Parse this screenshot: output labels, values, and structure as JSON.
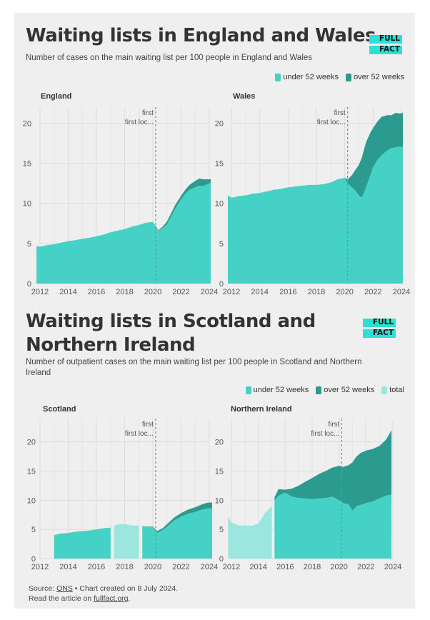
{
  "top": {
    "title": "Waiting lists in England and Wales",
    "subtitle": "Number of cases on the main waiting list per 100 people in England and Wales",
    "logo": [
      "FULL",
      "FACT"
    ],
    "legend": [
      {
        "label": "under 52 weeks",
        "color": "#46d1c6"
      },
      {
        "label": "over 52 weeks",
        "color": "#2b9b8f"
      }
    ]
  },
  "bottom": {
    "title_line1": "Waiting lists in Scotland and",
    "title_line2": "Northern Ireland",
    "subtitle_line1": "Number of outpatient cases on the main waiting list per 100 people in Scotland and Northern",
    "subtitle_line2": "Ireland",
    "logo": [
      "FULL",
      "FACT"
    ],
    "legend": [
      {
        "label": "under 52 weeks",
        "color": "#46d1c6"
      },
      {
        "label": "over 52 weeks",
        "color": "#2b9b8f"
      },
      {
        "label": "total",
        "color": "#9ce6e0"
      }
    ]
  },
  "footer": {
    "source_prefix": "Source: ",
    "source_link": "ONS",
    "source_suffix": " • Chart created on 8 July 2024.",
    "read_prefix": "Read the article on ",
    "read_link": "fullfact.org",
    "read_suffix": "."
  },
  "colors": {
    "under": "#46d1c6",
    "over": "#2b9b8f",
    "total": "#9ce6e0",
    "grid": "#dcdcdc",
    "divider": "#888888"
  },
  "chart_data": [
    {
      "type": "area",
      "title": "England",
      "ylim": [
        0,
        22
      ],
      "yticks": [
        0,
        5,
        10,
        15,
        20
      ],
      "xlim": [
        2012,
        2024
      ],
      "xticks": [
        2012,
        2014,
        2016,
        2018,
        2020,
        2022,
        2024
      ],
      "annotation": {
        "x": 2020.2,
        "lines": [
          "first",
          "first loc..."
        ]
      },
      "x": [
        2011.75,
        2012,
        2012.5,
        2013,
        2013.5,
        2014,
        2014.5,
        2015,
        2015.5,
        2016,
        2016.5,
        2017,
        2017.5,
        2018,
        2018.5,
        2019,
        2019.5,
        2020,
        2020.2,
        2020.4,
        2020.7,
        2021,
        2021.3,
        2021.6,
        2022,
        2022.3,
        2022.6,
        2023,
        2023.3,
        2023.6,
        2023.9,
        2024.1
      ],
      "series": [
        {
          "name": "under 52 weeks",
          "values": [
            4.7,
            4.6,
            4.8,
            4.9,
            5.1,
            5.3,
            5.4,
            5.6,
            5.7,
            5.9,
            6.1,
            6.4,
            6.6,
            6.8,
            7.1,
            7.3,
            7.6,
            7.7,
            7.2,
            6.6,
            6.9,
            7.4,
            8.4,
            9.4,
            10.5,
            11.2,
            11.7,
            12.0,
            12.2,
            12.2,
            12.4,
            12.6
          ]
        },
        {
          "name": "over 52 weeks",
          "values": [
            0,
            0,
            0,
            0,
            0,
            0,
            0,
            0,
            0,
            0,
            0,
            0,
            0,
            0,
            0,
            0,
            0,
            0,
            0,
            0.05,
            0.2,
            0.35,
            0.4,
            0.45,
            0.45,
            0.5,
            0.6,
            0.8,
            0.9,
            0.8,
            0.6,
            0.4
          ]
        }
      ]
    },
    {
      "type": "area",
      "title": "Wales",
      "ylim": [
        0,
        22
      ],
      "yticks": [
        0,
        5,
        10,
        15,
        20
      ],
      "xlim": [
        2012,
        2024
      ],
      "xticks": [
        2012,
        2014,
        2016,
        2018,
        2020,
        2022,
        2024
      ],
      "annotation": {
        "x": 2020.2,
        "lines": [
          "first",
          "first loc..."
        ]
      },
      "x": [
        2011.75,
        2012,
        2012.5,
        2013,
        2013.5,
        2014,
        2014.5,
        2015,
        2015.5,
        2016,
        2016.5,
        2017,
        2017.5,
        2018,
        2018.5,
        2019,
        2019.5,
        2020,
        2020.2,
        2020.5,
        2020.8,
        2021,
        2021.2,
        2021.5,
        2021.8,
        2022,
        2022.3,
        2022.6,
        2023,
        2023.3,
        2023.6,
        2023.9,
        2024.1
      ],
      "series": [
        {
          "name": "under 52 weeks",
          "values": [
            11.0,
            10.7,
            10.9,
            11.0,
            11.2,
            11.3,
            11.5,
            11.7,
            11.8,
            12.0,
            12.1,
            12.2,
            12.3,
            12.3,
            12.4,
            12.6,
            13.0,
            13.2,
            12.5,
            12.0,
            11.5,
            11.0,
            10.7,
            12.0,
            13.5,
            14.5,
            15.4,
            16.0,
            16.6,
            16.9,
            17.0,
            17.1,
            17.0
          ]
        },
        {
          "name": "over 52 weeks",
          "values": [
            0,
            0,
            0,
            0,
            0,
            0,
            0,
            0,
            0,
            0,
            0,
            0,
            0,
            0,
            0,
            0,
            0,
            0,
            0.5,
            1.5,
            2.8,
            3.8,
            5.0,
            5.6,
            5.3,
            4.9,
            4.8,
            4.8,
            4.4,
            4.1,
            4.3,
            4.1,
            4.3
          ]
        }
      ]
    },
    {
      "type": "area",
      "title": "Scotland",
      "ylim": [
        0,
        24
      ],
      "yticks": [
        0,
        5,
        10,
        15,
        20
      ],
      "xlim": [
        2012,
        2024
      ],
      "xticks": [
        2012,
        2014,
        2016,
        2018,
        2020,
        2022,
        2024
      ],
      "annotation": {
        "x": 2020.2,
        "lines": [
          "first",
          "first loc..."
        ]
      },
      "x": [
        2013,
        2013.5,
        2014,
        2014.5,
        2015,
        2015.5,
        2016,
        2016.5,
        2017,
        2017.25,
        2017.5,
        2018,
        2018.5,
        2019,
        2019.25,
        2019.5,
        2020,
        2020.3,
        2020.7,
        2021,
        2021.5,
        2022,
        2022.5,
        2023,
        2023.5,
        2023.9,
        2024.2
      ],
      "series": [
        {
          "name": "under 52 weeks",
          "values": [
            4.0,
            4.3,
            4.4,
            4.6,
            4.7,
            4.8,
            5.0,
            5.2,
            5.3,
            null,
            null,
            null,
            null,
            null,
            5.6,
            5.5,
            5.4,
            4.4,
            4.9,
            5.5,
            6.5,
            7.2,
            7.7,
            8.0,
            8.4,
            8.6,
            8.6
          ]
        },
        {
          "name": "over 52 weeks",
          "values": [
            0,
            0,
            0,
            0,
            0,
            0,
            0,
            0,
            0,
            null,
            null,
            null,
            null,
            null,
            0,
            0,
            0.1,
            0.3,
            0.3,
            0.4,
            0.5,
            0.6,
            0.7,
            0.8,
            0.9,
            1.0,
            1.0
          ]
        },
        {
          "name": "total",
          "values": [
            null,
            null,
            null,
            null,
            null,
            null,
            null,
            null,
            null,
            5.6,
            5.9,
            5.9,
            5.7,
            5.7,
            null,
            null,
            null,
            null,
            null,
            null,
            null,
            null,
            null,
            null,
            null,
            null,
            null
          ]
        }
      ]
    },
    {
      "type": "area",
      "title": "Northern Ireland",
      "ylim": [
        0,
        24
      ],
      "yticks": [
        0,
        5,
        10,
        15,
        20
      ],
      "xlim": [
        2012,
        2024
      ],
      "xticks": [
        2012,
        2014,
        2016,
        2018,
        2020,
        2022,
        2024
      ],
      "annotation": {
        "x": 2020.2,
        "lines": [
          "first",
          "first loc..."
        ]
      },
      "x": [
        2011.75,
        2012,
        2012.5,
        2013,
        2013.5,
        2014,
        2014.5,
        2015,
        2015.2,
        2015.5,
        2016,
        2016.5,
        2017,
        2017.5,
        2018,
        2018.5,
        2019,
        2019.5,
        2020,
        2020.3,
        2020.7,
        2021,
        2021.3,
        2021.6,
        2022,
        2022.5,
        2023,
        2023.5,
        2023.9
      ],
      "series": [
        {
          "name": "under 52 weeks",
          "values": [
            null,
            null,
            null,
            null,
            null,
            null,
            null,
            null,
            10.0,
            10.8,
            11.3,
            10.6,
            10.4,
            10.3,
            10.2,
            10.3,
            10.4,
            10.6,
            10.0,
            9.5,
            9.3,
            8.2,
            9.0,
            9.2,
            9.5,
            9.8,
            10.3,
            10.8,
            11.0
          ]
        },
        {
          "name": "over 52 weeks",
          "values": [
            null,
            null,
            null,
            null,
            null,
            null,
            null,
            null,
            0.5,
            1.1,
            0.5,
            1.4,
            2.1,
            2.9,
            3.6,
            4.2,
            4.6,
            5.0,
            5.9,
            6.2,
            6.7,
            8.3,
            8.5,
            8.9,
            9.0,
            9.0,
            9.0,
            9.6,
            11.0
          ]
        },
        {
          "name": "total",
          "values": [
            7.2,
            6.2,
            5.7,
            5.7,
            5.6,
            6.0,
            7.8,
            9.0,
            null,
            null,
            null,
            null,
            null,
            null,
            null,
            null,
            null,
            null,
            null,
            null,
            null,
            null,
            null,
            null,
            null,
            null,
            null,
            null,
            null
          ]
        }
      ]
    }
  ]
}
